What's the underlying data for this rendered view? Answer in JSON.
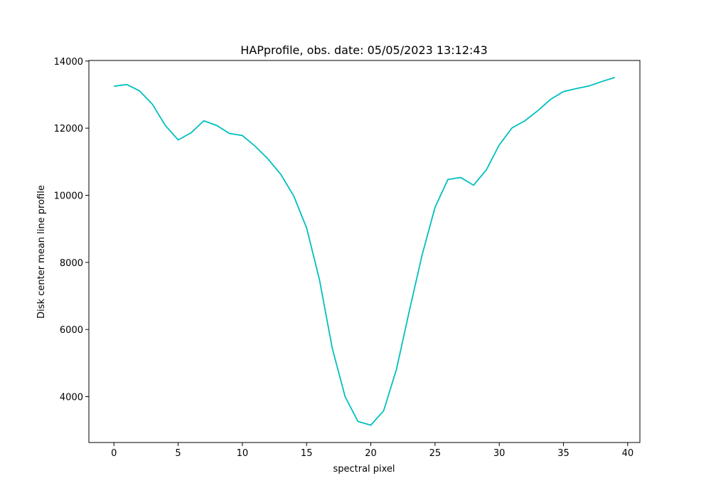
{
  "chart_data": {
    "type": "line",
    "title": "HAPprofile, obs. date: 05/05/2023 13:12:43",
    "xlabel": "spectral pixel",
    "ylabel": "Disk center mean line profile",
    "x": [
      0,
      1,
      2,
      3,
      4,
      5,
      6,
      7,
      8,
      9,
      10,
      11,
      12,
      13,
      14,
      15,
      16,
      17,
      18,
      19,
      20,
      21,
      22,
      23,
      24,
      25,
      26,
      27,
      28,
      29,
      30,
      31,
      32,
      33,
      34,
      35,
      36,
      37,
      38,
      39
    ],
    "series": [
      {
        "name": "profile",
        "color": "#00bfbf",
        "values": [
          13250,
          13300,
          13110,
          12710,
          12080,
          11650,
          11860,
          12220,
          12080,
          11840,
          11780,
          11460,
          11080,
          10620,
          9980,
          9030,
          7490,
          5440,
          4000,
          3260,
          3150,
          3580,
          4820,
          6560,
          8230,
          9640,
          10470,
          10530,
          10300,
          10760,
          11500,
          12010,
          12220,
          12520,
          12860,
          13090,
          13180,
          13260,
          13390,
          13510
        ]
      }
    ],
    "xlim": [
      -1.95,
      40.95
    ],
    "xticks": [
      0,
      5,
      10,
      15,
      20,
      25,
      30,
      35,
      40
    ],
    "ylim": [
      2633,
      14017
    ],
    "yticks": [
      4000,
      6000,
      8000,
      10000,
      12000,
      14000
    ],
    "grid": false
  }
}
